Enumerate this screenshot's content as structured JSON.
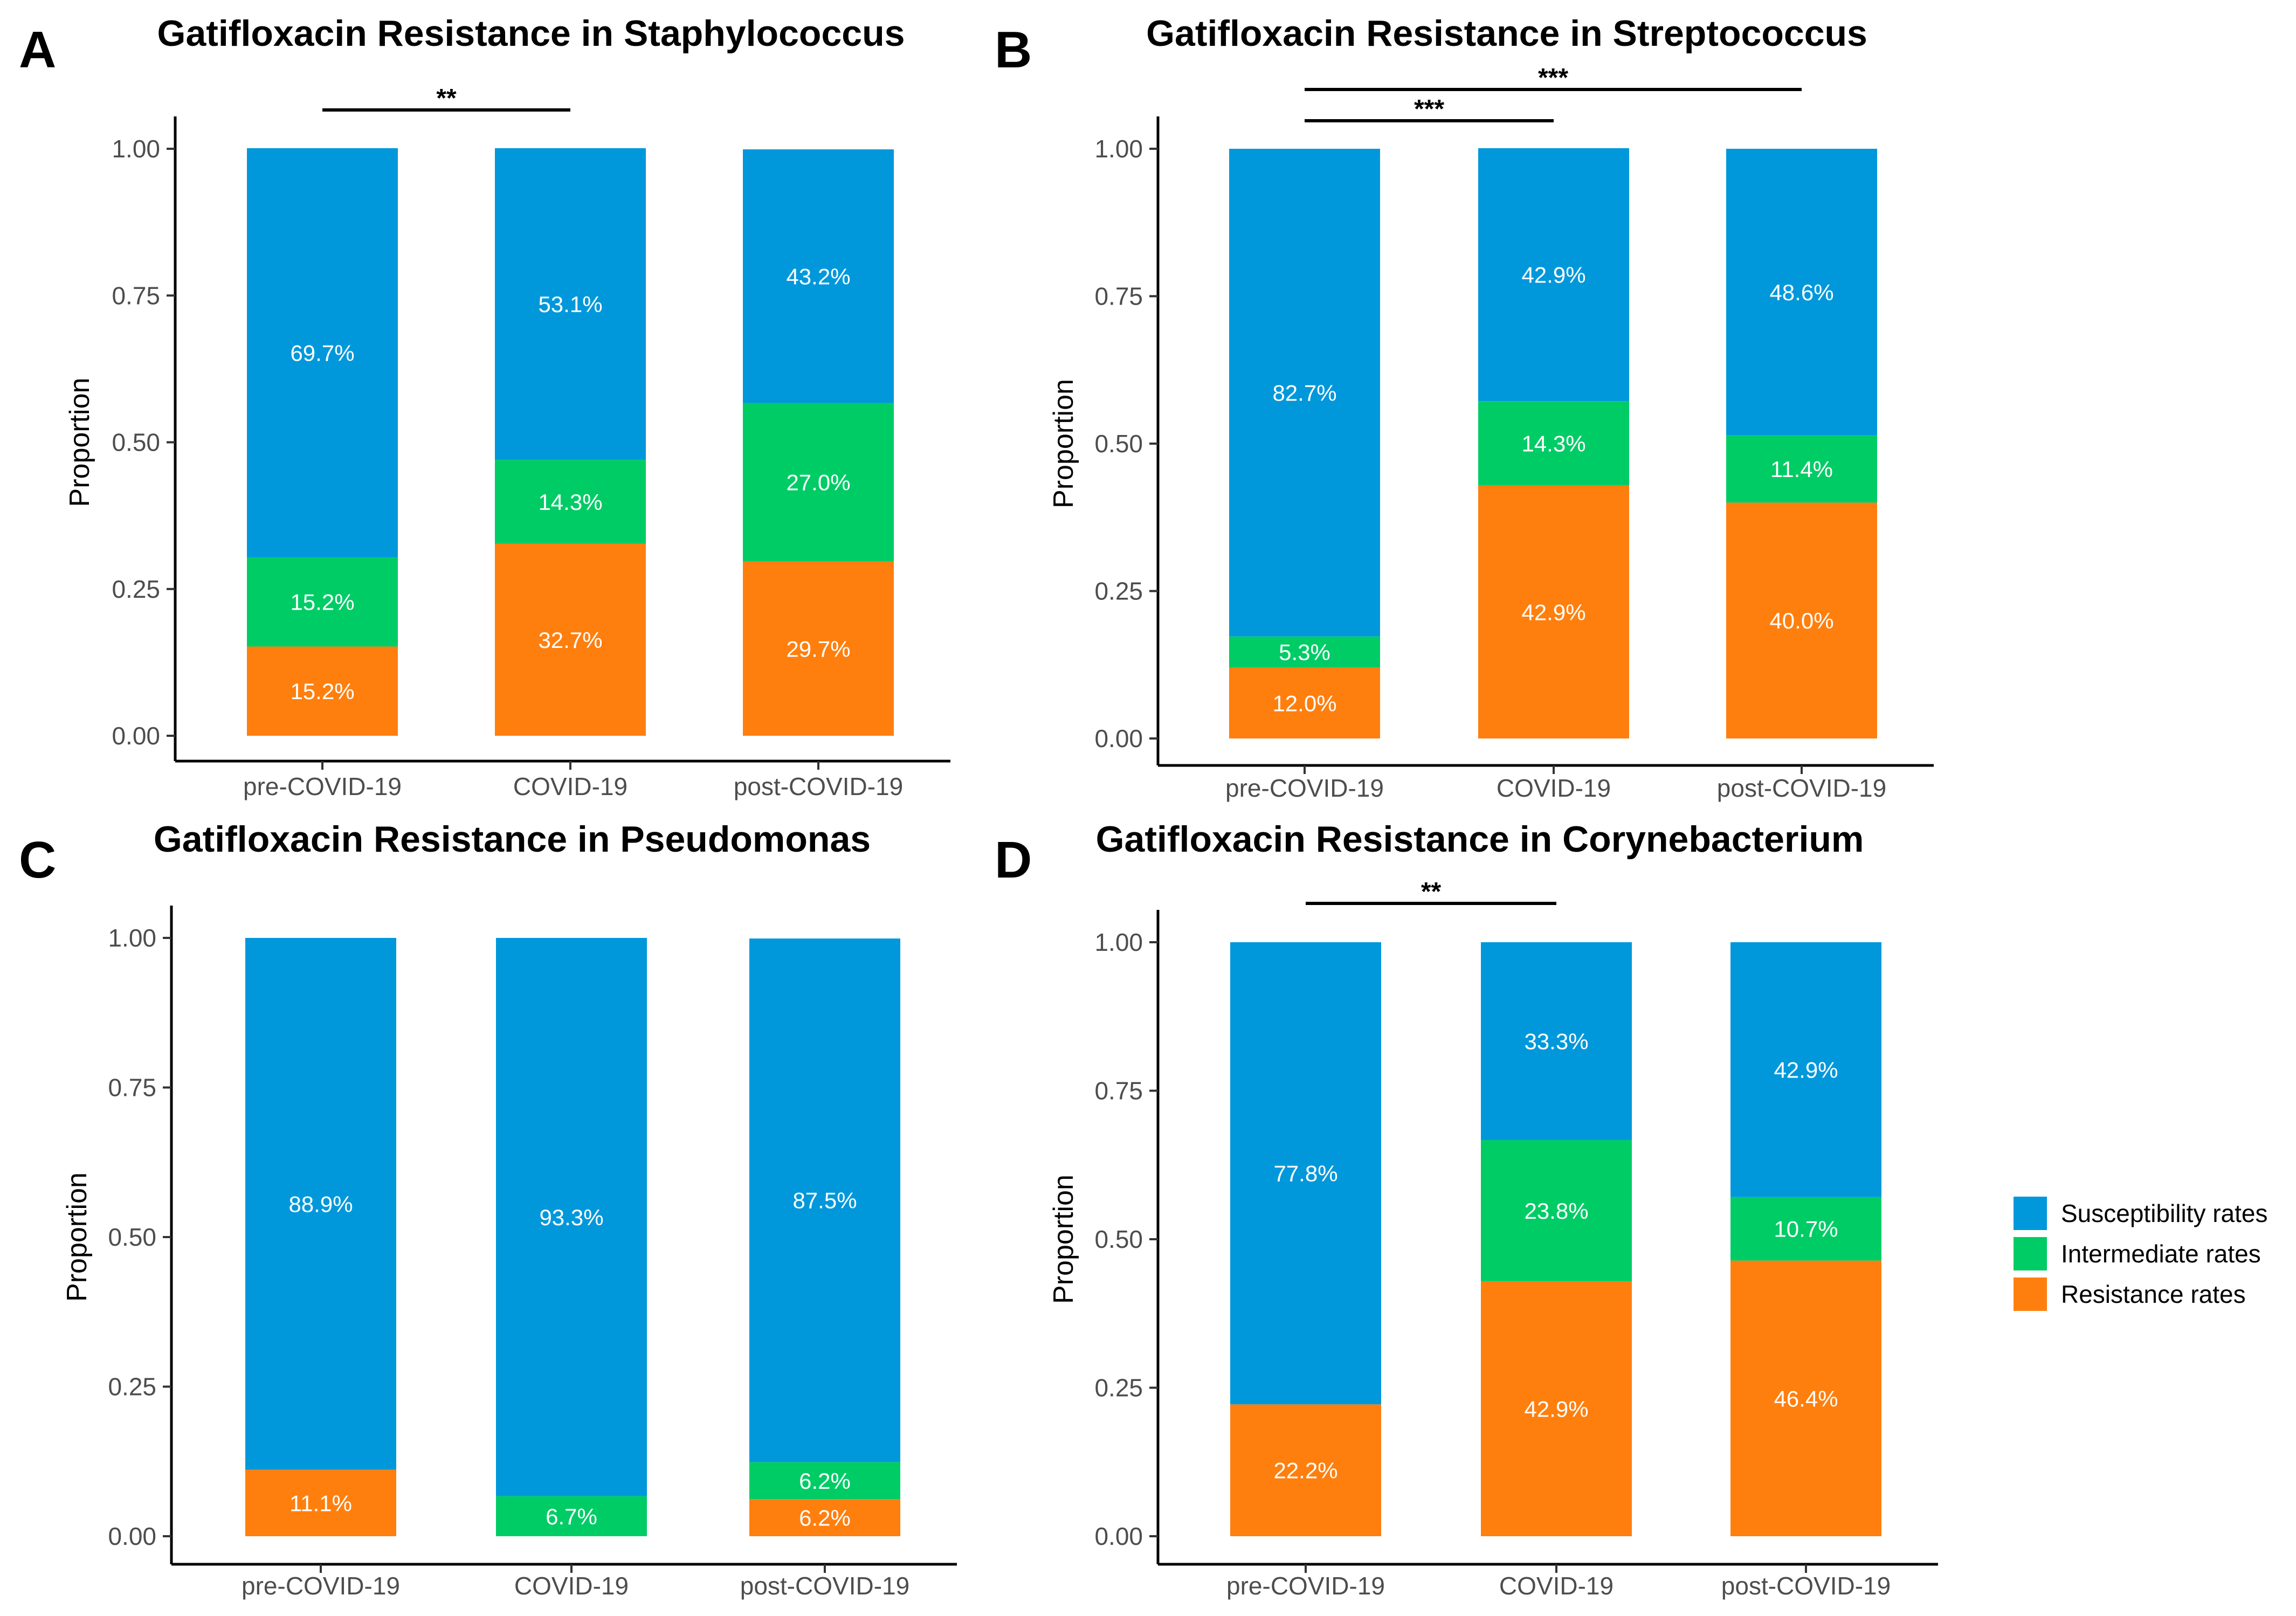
{
  "legend": {
    "items": [
      {
        "label": "Susceptibility rates",
        "color": "#0098DB"
      },
      {
        "label": "Intermediate rates",
        "color": "#00CC66"
      },
      {
        "label": "Resistance rates",
        "color": "#FF7F0E"
      }
    ]
  },
  "chart_data": [
    {
      "panel": "A",
      "type": "bar",
      "stacked": true,
      "title": "Gatifloxacin Resistance in Staphylococcus",
      "xlabel": "",
      "ylabel": "Proportion",
      "ylim": [
        0,
        1
      ],
      "yticks": [
        "0.00",
        "0.25",
        "0.50",
        "0.75",
        "1.00"
      ],
      "categories": [
        "pre-COVID-19",
        "COVID-19",
        "post-COVID-19"
      ],
      "series": [
        {
          "name": "Resistance rates",
          "values": [
            0.152,
            0.327,
            0.297
          ],
          "labels": [
            "15.2%",
            "32.7%",
            "29.7%"
          ]
        },
        {
          "name": "Intermediate rates",
          "values": [
            0.152,
            0.143,
            0.27
          ],
          "labels": [
            "15.2%",
            "14.3%",
            "27.0%"
          ]
        },
        {
          "name": "Susceptibility rates",
          "values": [
            0.697,
            0.531,
            0.432
          ],
          "labels": [
            "69.7%",
            "53.1%",
            "43.2%"
          ]
        }
      ],
      "significance": [
        {
          "from": 0,
          "to": 1,
          "label": "**"
        }
      ]
    },
    {
      "panel": "B",
      "type": "bar",
      "stacked": true,
      "title": "Gatifloxacin Resistance in Streptococcus",
      "xlabel": "",
      "ylabel": "Proportion",
      "ylim": [
        0,
        1
      ],
      "yticks": [
        "0.00",
        "0.25",
        "0.50",
        "0.75",
        "1.00"
      ],
      "categories": [
        "pre-COVID-19",
        "COVID-19",
        "post-COVID-19"
      ],
      "series": [
        {
          "name": "Resistance rates",
          "values": [
            0.12,
            0.429,
            0.4
          ],
          "labels": [
            "12.0%",
            "42.9%",
            "40.0%"
          ]
        },
        {
          "name": "Intermediate rates",
          "values": [
            0.053,
            0.143,
            0.114
          ],
          "labels": [
            "5.3%",
            "14.3%",
            "11.4%"
          ]
        },
        {
          "name": "Susceptibility rates",
          "values": [
            0.827,
            0.429,
            0.486
          ],
          "labels": [
            "82.7%",
            "42.9%",
            "48.6%"
          ]
        }
      ],
      "significance": [
        {
          "from": 0,
          "to": 1,
          "label": "***"
        },
        {
          "from": 0,
          "to": 2,
          "label": "***"
        }
      ]
    },
    {
      "panel": "C",
      "type": "bar",
      "stacked": true,
      "title": "Gatifloxacin Resistance in Pseudomonas",
      "xlabel": "",
      "ylabel": "Proportion",
      "ylim": [
        0,
        1
      ],
      "yticks": [
        "0.00",
        "0.25",
        "0.50",
        "0.75",
        "1.00"
      ],
      "categories": [
        "pre-COVID-19",
        "COVID-19",
        "post-COVID-19"
      ],
      "series": [
        {
          "name": "Resistance rates",
          "values": [
            0.111,
            0.0,
            0.062
          ],
          "labels": [
            "11.1%",
            "",
            "6.2%"
          ]
        },
        {
          "name": "Intermediate rates",
          "values": [
            0.0,
            0.067,
            0.062
          ],
          "labels": [
            "",
            "6.7%",
            "6.2%"
          ]
        },
        {
          "name": "Susceptibility rates",
          "values": [
            0.889,
            0.933,
            0.875
          ],
          "labels": [
            "88.9%",
            "93.3%",
            "87.5%"
          ]
        }
      ],
      "significance": []
    },
    {
      "panel": "D",
      "type": "bar",
      "stacked": true,
      "title": "Gatifloxacin Resistance in Corynebacterium",
      "xlabel": "",
      "ylabel": "Proportion",
      "ylim": [
        0,
        1
      ],
      "yticks": [
        "0.00",
        "0.25",
        "0.50",
        "0.75",
        "1.00"
      ],
      "categories": [
        "pre-COVID-19",
        "COVID-19",
        "post-COVID-19"
      ],
      "series": [
        {
          "name": "Resistance rates",
          "values": [
            0.222,
            0.429,
            0.464
          ],
          "labels": [
            "22.2%",
            "42.9%",
            "46.4%"
          ]
        },
        {
          "name": "Intermediate rates",
          "values": [
            0.0,
            0.238,
            0.107
          ],
          "labels": [
            "",
            "23.8%",
            "10.7%"
          ]
        },
        {
          "name": "Susceptibility rates",
          "values": [
            0.778,
            0.333,
            0.429
          ],
          "labels": [
            "77.8%",
            "33.3%",
            "42.9%"
          ]
        }
      ],
      "significance": [
        {
          "from": 0,
          "to": 1,
          "label": "**"
        }
      ]
    }
  ]
}
